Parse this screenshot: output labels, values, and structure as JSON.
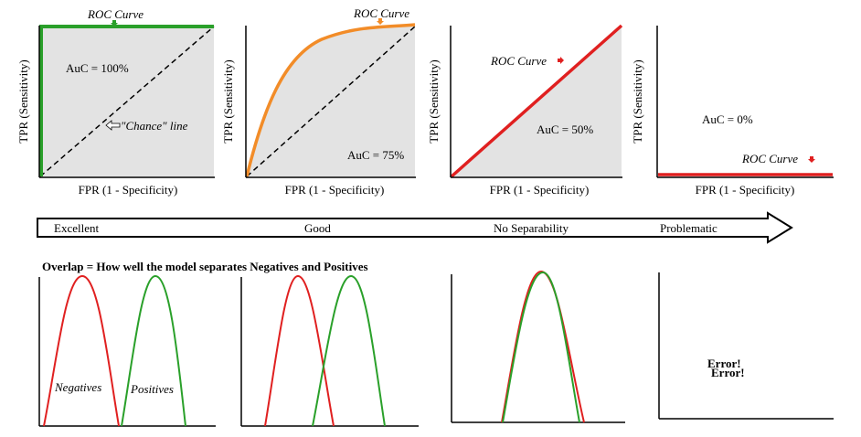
{
  "roc_panels": [
    {
      "ylabel": "TPR (Sensitivity)",
      "xlabel": "FPR (1 - Specificity)",
      "curve_label": "ROC Curve",
      "auc_label": "AuC = 100%",
      "chance_label": "\"Chance\" line",
      "curve_color": "#2aa02a",
      "area_fraction": 1.0
    },
    {
      "ylabel": "TPR (Sensitivity)",
      "xlabel": "FPR (1 - Specificity)",
      "curve_label": "ROC Curve",
      "auc_label": "AuC = 75%",
      "curve_color": "#f28c28",
      "area_fraction": 0.75
    },
    {
      "ylabel": "TPR (Sensitivity)",
      "xlabel": "FPR (1 - Specificity)",
      "curve_label": "ROC Curve",
      "auc_label": "AuC = 50%",
      "curve_color": "#e02020",
      "area_fraction": 0.5
    },
    {
      "ylabel": "TPR (Sensitivity)",
      "xlabel": "FPR (1 - Specificity)",
      "curve_label": "ROC Curve",
      "auc_label": "AuC = 0%",
      "curve_color": "#e02020",
      "area_fraction": 0.0
    }
  ],
  "scale": {
    "labels": [
      "Excellent",
      "Good",
      "No Separability",
      "Problematic"
    ],
    "colors": [
      "#2aa02a",
      "#f28c28",
      "#e02020",
      "#e02020"
    ]
  },
  "overlap": {
    "title": "Overlap = How well the model separates Negatives and Positives",
    "negatives_label": "Negatives",
    "positives_label": "Positives",
    "negatives_color": "#e02020",
    "positives_color": "#2aa02a",
    "error_label_red": "Error!",
    "error_label_green": "Error!"
  }
}
